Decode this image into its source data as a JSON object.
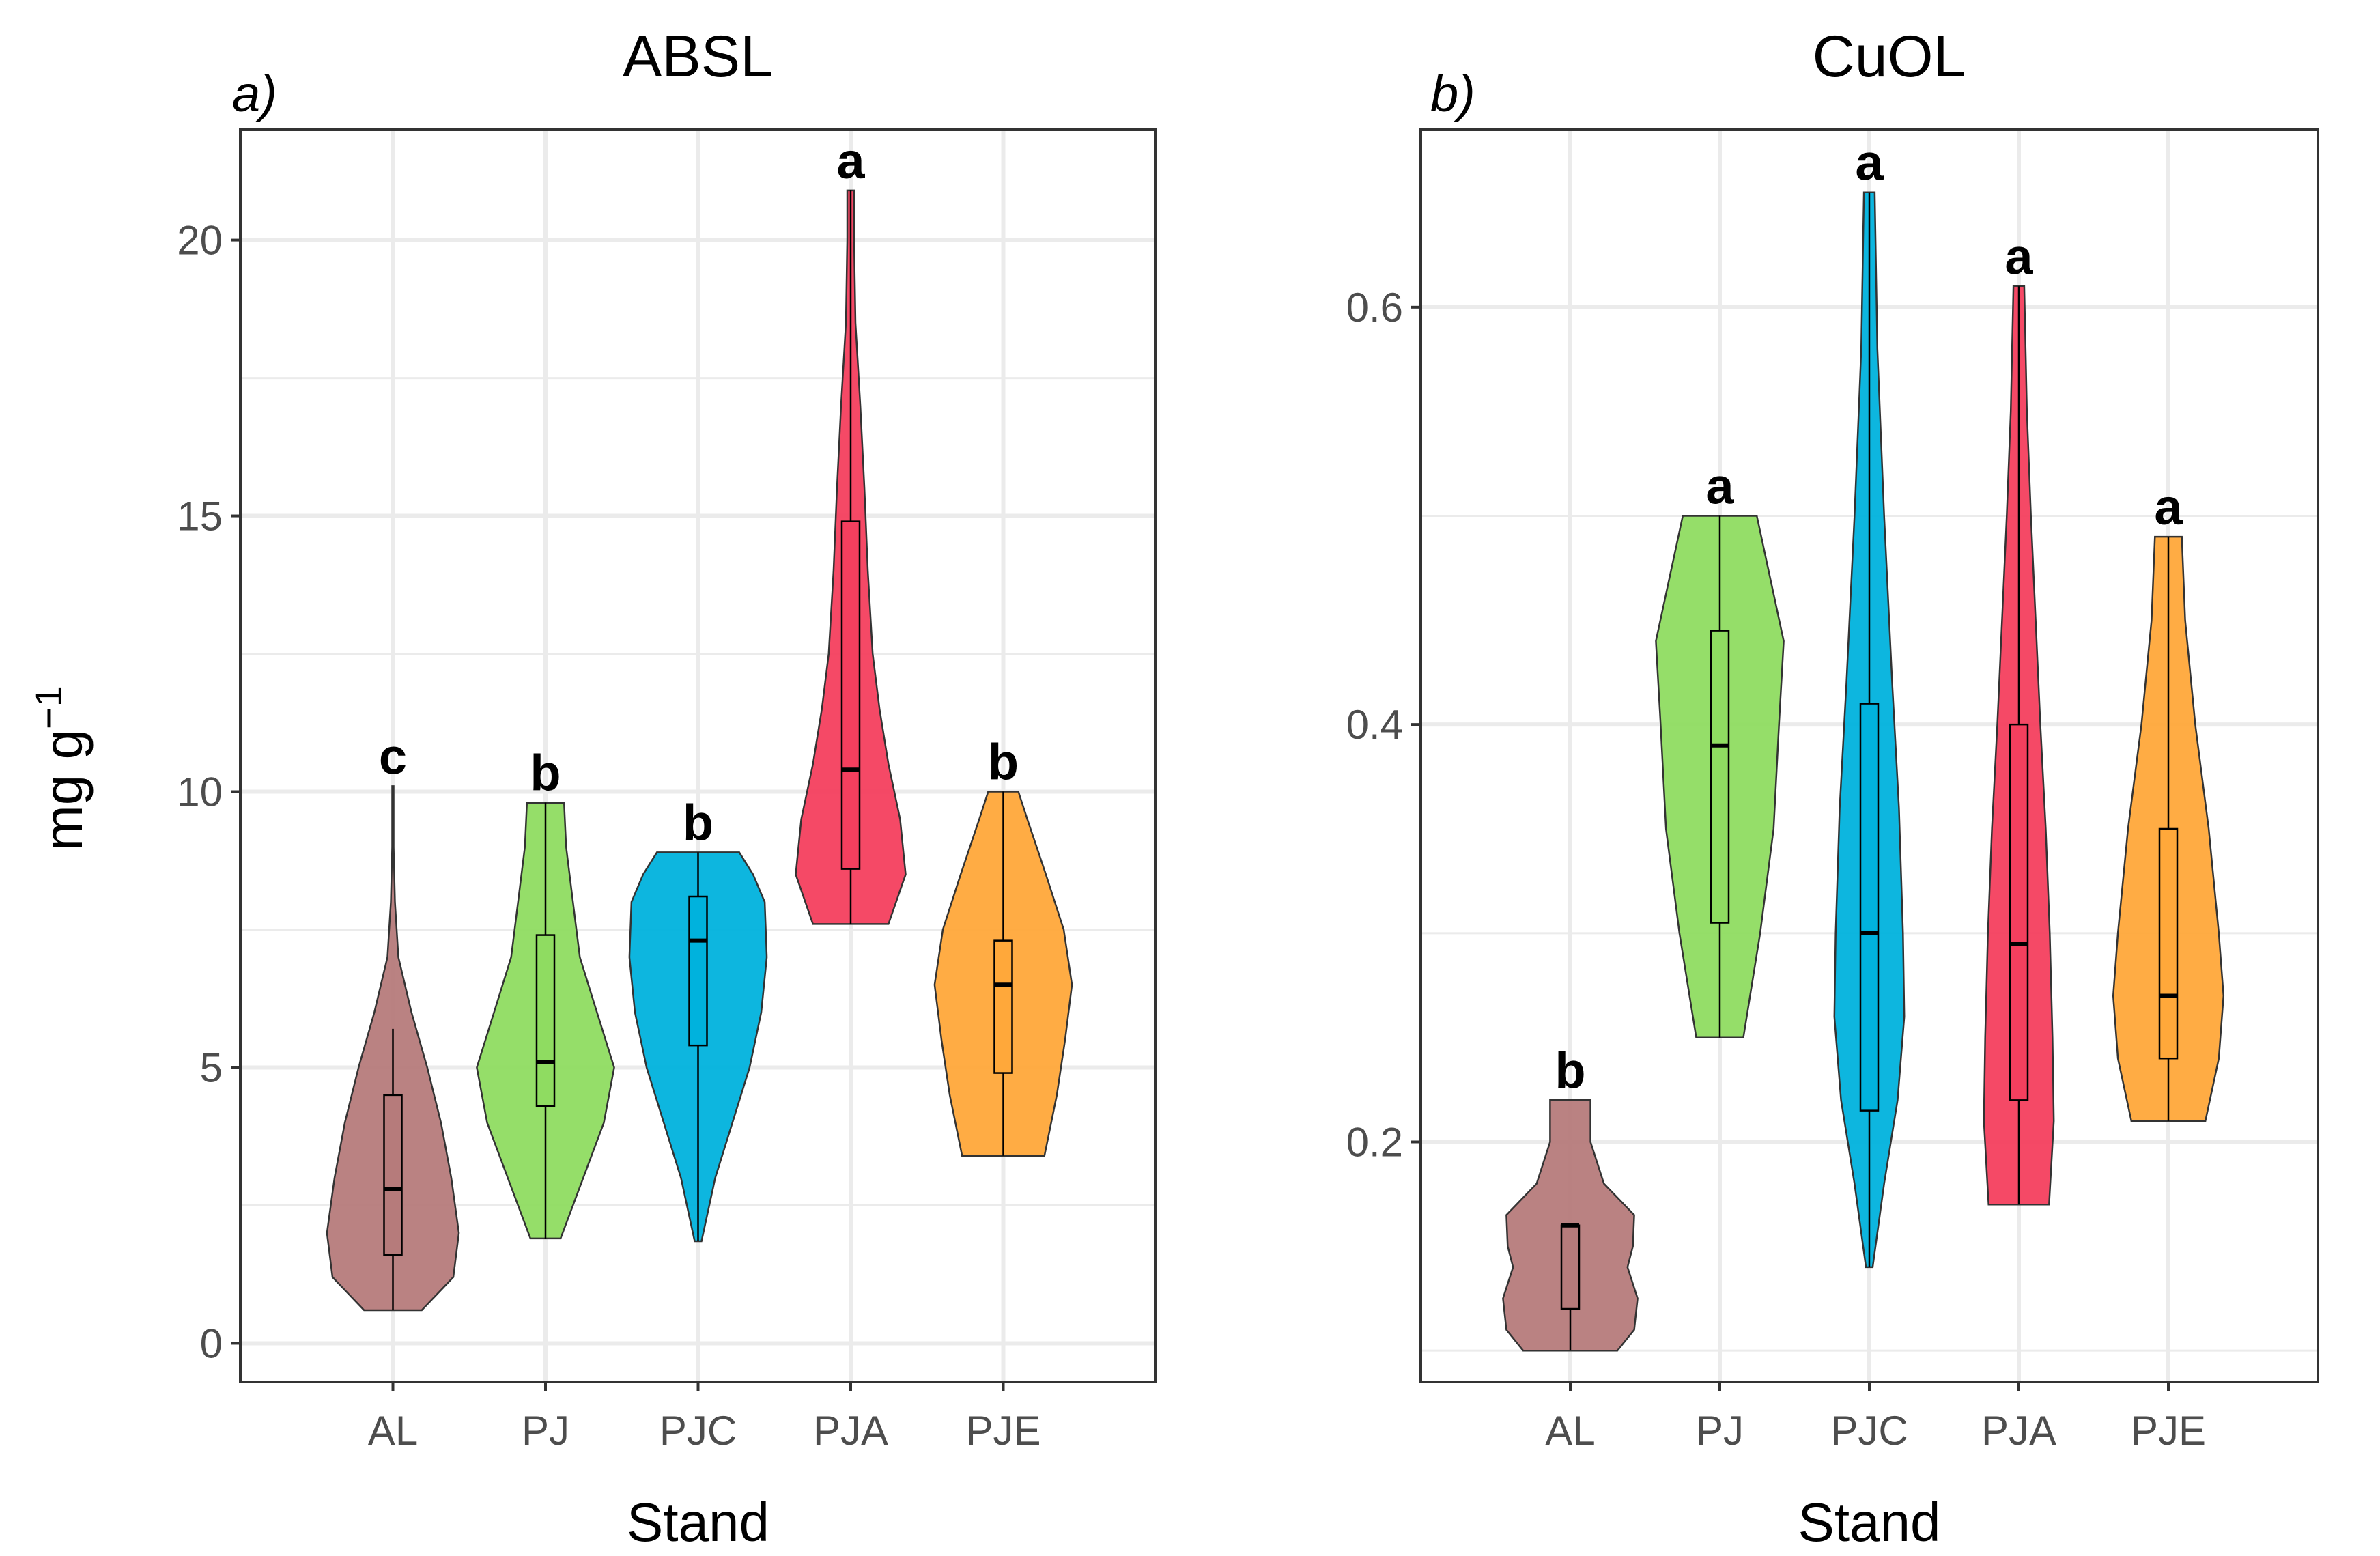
{
  "figure": {
    "ylabel_main": "mg g",
    "ylabel_sup": "−1"
  },
  "colors": {
    "AL": "#b67b7b",
    "PJ": "#8fdc61",
    "PJC": "#00b2dd",
    "PJA": "#f43f5e",
    "PJE": "#ffa83a",
    "grid": "#ebebeb",
    "border": "#333333"
  },
  "chart_data": [
    {
      "type": "violin",
      "tag": "a)",
      "title": "ABSL",
      "xlabel": "Stand",
      "ylabel": "mg g−1",
      "ylim": [
        -0.7,
        22
      ],
      "yticks": [
        0,
        5,
        10,
        15,
        20
      ],
      "ytick_labels": [
        "0",
        "5",
        "10",
        "15",
        "20"
      ],
      "grid": true,
      "categories": [
        "AL",
        "PJ",
        "PJC",
        "PJA",
        "PJE"
      ],
      "groups": [
        {
          "name": "AL",
          "letter": "c",
          "min": 0.6,
          "q1": 1.6,
          "median": 2.8,
          "q3": 4.5,
          "max": 10.1,
          "whisker_high": 5.7,
          "density": [
            [
              0.6,
              0.42
            ],
            [
              1.2,
              0.88
            ],
            [
              2.0,
              0.96
            ],
            [
              3.0,
              0.85
            ],
            [
              4.0,
              0.7
            ],
            [
              5.0,
              0.5
            ],
            [
              6.0,
              0.27
            ],
            [
              7.0,
              0.08
            ],
            [
              8.0,
              0.03
            ],
            [
              9.0,
              0.01
            ],
            [
              10.1,
              0.01
            ]
          ]
        },
        {
          "name": "PJ",
          "letter": "b",
          "min": 1.9,
          "q1": 4.3,
          "median": 5.1,
          "q3": 7.4,
          "max": 9.8,
          "whisker_high": 9.8,
          "density": [
            [
              1.9,
              0.22
            ],
            [
              3.0,
              0.55
            ],
            [
              4.0,
              0.85
            ],
            [
              5.0,
              1.0
            ],
            [
              6.0,
              0.75
            ],
            [
              7.0,
              0.5
            ],
            [
              8.0,
              0.4
            ],
            [
              9.0,
              0.3
            ],
            [
              9.8,
              0.27
            ]
          ]
        },
        {
          "name": "PJC",
          "letter": "b",
          "min": 1.85,
          "q1": 5.4,
          "median": 7.3,
          "q3": 8.1,
          "max": 8.9,
          "whisker_high": 8.9,
          "density": [
            [
              1.85,
              0.05
            ],
            [
              3.0,
              0.25
            ],
            [
              4.0,
              0.5
            ],
            [
              5.0,
              0.75
            ],
            [
              6.0,
              0.92
            ],
            [
              7.0,
              1.0
            ],
            [
              8.0,
              0.97
            ],
            [
              8.5,
              0.8
            ],
            [
              8.9,
              0.6
            ]
          ]
        },
        {
          "name": "PJA",
          "letter": "a",
          "min": 7.6,
          "q1": 8.6,
          "median": 10.4,
          "q3": 14.9,
          "max": 20.9,
          "whisker_high": 20.9,
          "density": [
            [
              7.6,
              0.55
            ],
            [
              8.5,
              0.8
            ],
            [
              9.5,
              0.72
            ],
            [
              10.5,
              0.55
            ],
            [
              11.5,
              0.42
            ],
            [
              12.5,
              0.32
            ],
            [
              14.0,
              0.25
            ],
            [
              15.5,
              0.2
            ],
            [
              17.0,
              0.14
            ],
            [
              18.5,
              0.07
            ],
            [
              20.0,
              0.05
            ],
            [
              20.9,
              0.05
            ]
          ]
        },
        {
          "name": "PJE",
          "letter": "b",
          "min": 3.4,
          "q1": 4.9,
          "median": 6.5,
          "q3": 7.3,
          "max": 10.0,
          "whisker_high": 10.0,
          "density": [
            [
              3.4,
              0.6
            ],
            [
              4.5,
              0.78
            ],
            [
              5.5,
              0.9
            ],
            [
              6.5,
              1.0
            ],
            [
              7.5,
              0.88
            ],
            [
              8.5,
              0.62
            ],
            [
              9.5,
              0.35
            ],
            [
              10.0,
              0.22
            ]
          ]
        }
      ]
    },
    {
      "type": "violin",
      "tag": "b)",
      "title": "CuOL",
      "xlabel": "Stand",
      "ylabel": "",
      "ylim": [
        0.085,
        0.685
      ],
      "yticks": [
        0.2,
        0.4,
        0.6
      ],
      "ytick_labels": [
        "0.2",
        "0.4",
        "0.6"
      ],
      "grid": true,
      "categories": [
        "AL",
        "PJ",
        "PJC",
        "PJA",
        "PJE"
      ],
      "groups": [
        {
          "name": "AL",
          "letter": "b",
          "min": 0.1,
          "q1": 0.12,
          "median": 0.16,
          "q3": 0.16,
          "max": 0.22,
          "whisker_high": 0.16,
          "density": [
            [
              0.1,
              0.7
            ],
            [
              0.11,
              0.95
            ],
            [
              0.125,
              1.0
            ],
            [
              0.14,
              0.85
            ],
            [
              0.15,
              0.93
            ],
            [
              0.165,
              0.95
            ],
            [
              0.18,
              0.5
            ],
            [
              0.2,
              0.3
            ],
            [
              0.22,
              0.3
            ]
          ]
        },
        {
          "name": "PJ",
          "letter": "a",
          "min": 0.25,
          "q1": 0.305,
          "median": 0.39,
          "q3": 0.445,
          "max": 0.5,
          "whisker_high": 0.5,
          "density": [
            [
              0.25,
              0.35
            ],
            [
              0.3,
              0.6
            ],
            [
              0.35,
              0.8
            ],
            [
              0.4,
              0.88
            ],
            [
              0.44,
              0.95
            ],
            [
              0.47,
              0.75
            ],
            [
              0.5,
              0.55
            ]
          ]
        },
        {
          "name": "PJC",
          "letter": "a",
          "min": 0.14,
          "q1": 0.215,
          "median": 0.3,
          "q3": 0.41,
          "max": 0.655,
          "whisker_high": 0.655,
          "density": [
            [
              0.14,
              0.05
            ],
            [
              0.18,
              0.22
            ],
            [
              0.22,
              0.42
            ],
            [
              0.26,
              0.52
            ],
            [
              0.3,
              0.5
            ],
            [
              0.36,
              0.44
            ],
            [
              0.42,
              0.34
            ],
            [
              0.5,
              0.22
            ],
            [
              0.58,
              0.12
            ],
            [
              0.655,
              0.08
            ]
          ]
        },
        {
          "name": "PJA",
          "letter": "a",
          "min": 0.17,
          "q1": 0.22,
          "median": 0.295,
          "q3": 0.4,
          "max": 0.61,
          "whisker_high": 0.61,
          "density": [
            [
              0.17,
              0.45
            ],
            [
              0.21,
              0.52
            ],
            [
              0.25,
              0.5
            ],
            [
              0.3,
              0.46
            ],
            [
              0.35,
              0.4
            ],
            [
              0.4,
              0.32
            ],
            [
              0.45,
              0.25
            ],
            [
              0.5,
              0.18
            ],
            [
              0.55,
              0.12
            ],
            [
              0.61,
              0.08
            ]
          ]
        },
        {
          "name": "PJE",
          "letter": "a",
          "min": 0.21,
          "q1": 0.24,
          "median": 0.27,
          "q3": 0.35,
          "max": 0.49,
          "whisker_high": 0.49,
          "density": [
            [
              0.21,
              0.55
            ],
            [
              0.24,
              0.75
            ],
            [
              0.27,
              0.82
            ],
            [
              0.3,
              0.75
            ],
            [
              0.35,
              0.6
            ],
            [
              0.4,
              0.4
            ],
            [
              0.45,
              0.25
            ],
            [
              0.49,
              0.2
            ]
          ]
        }
      ]
    }
  ]
}
